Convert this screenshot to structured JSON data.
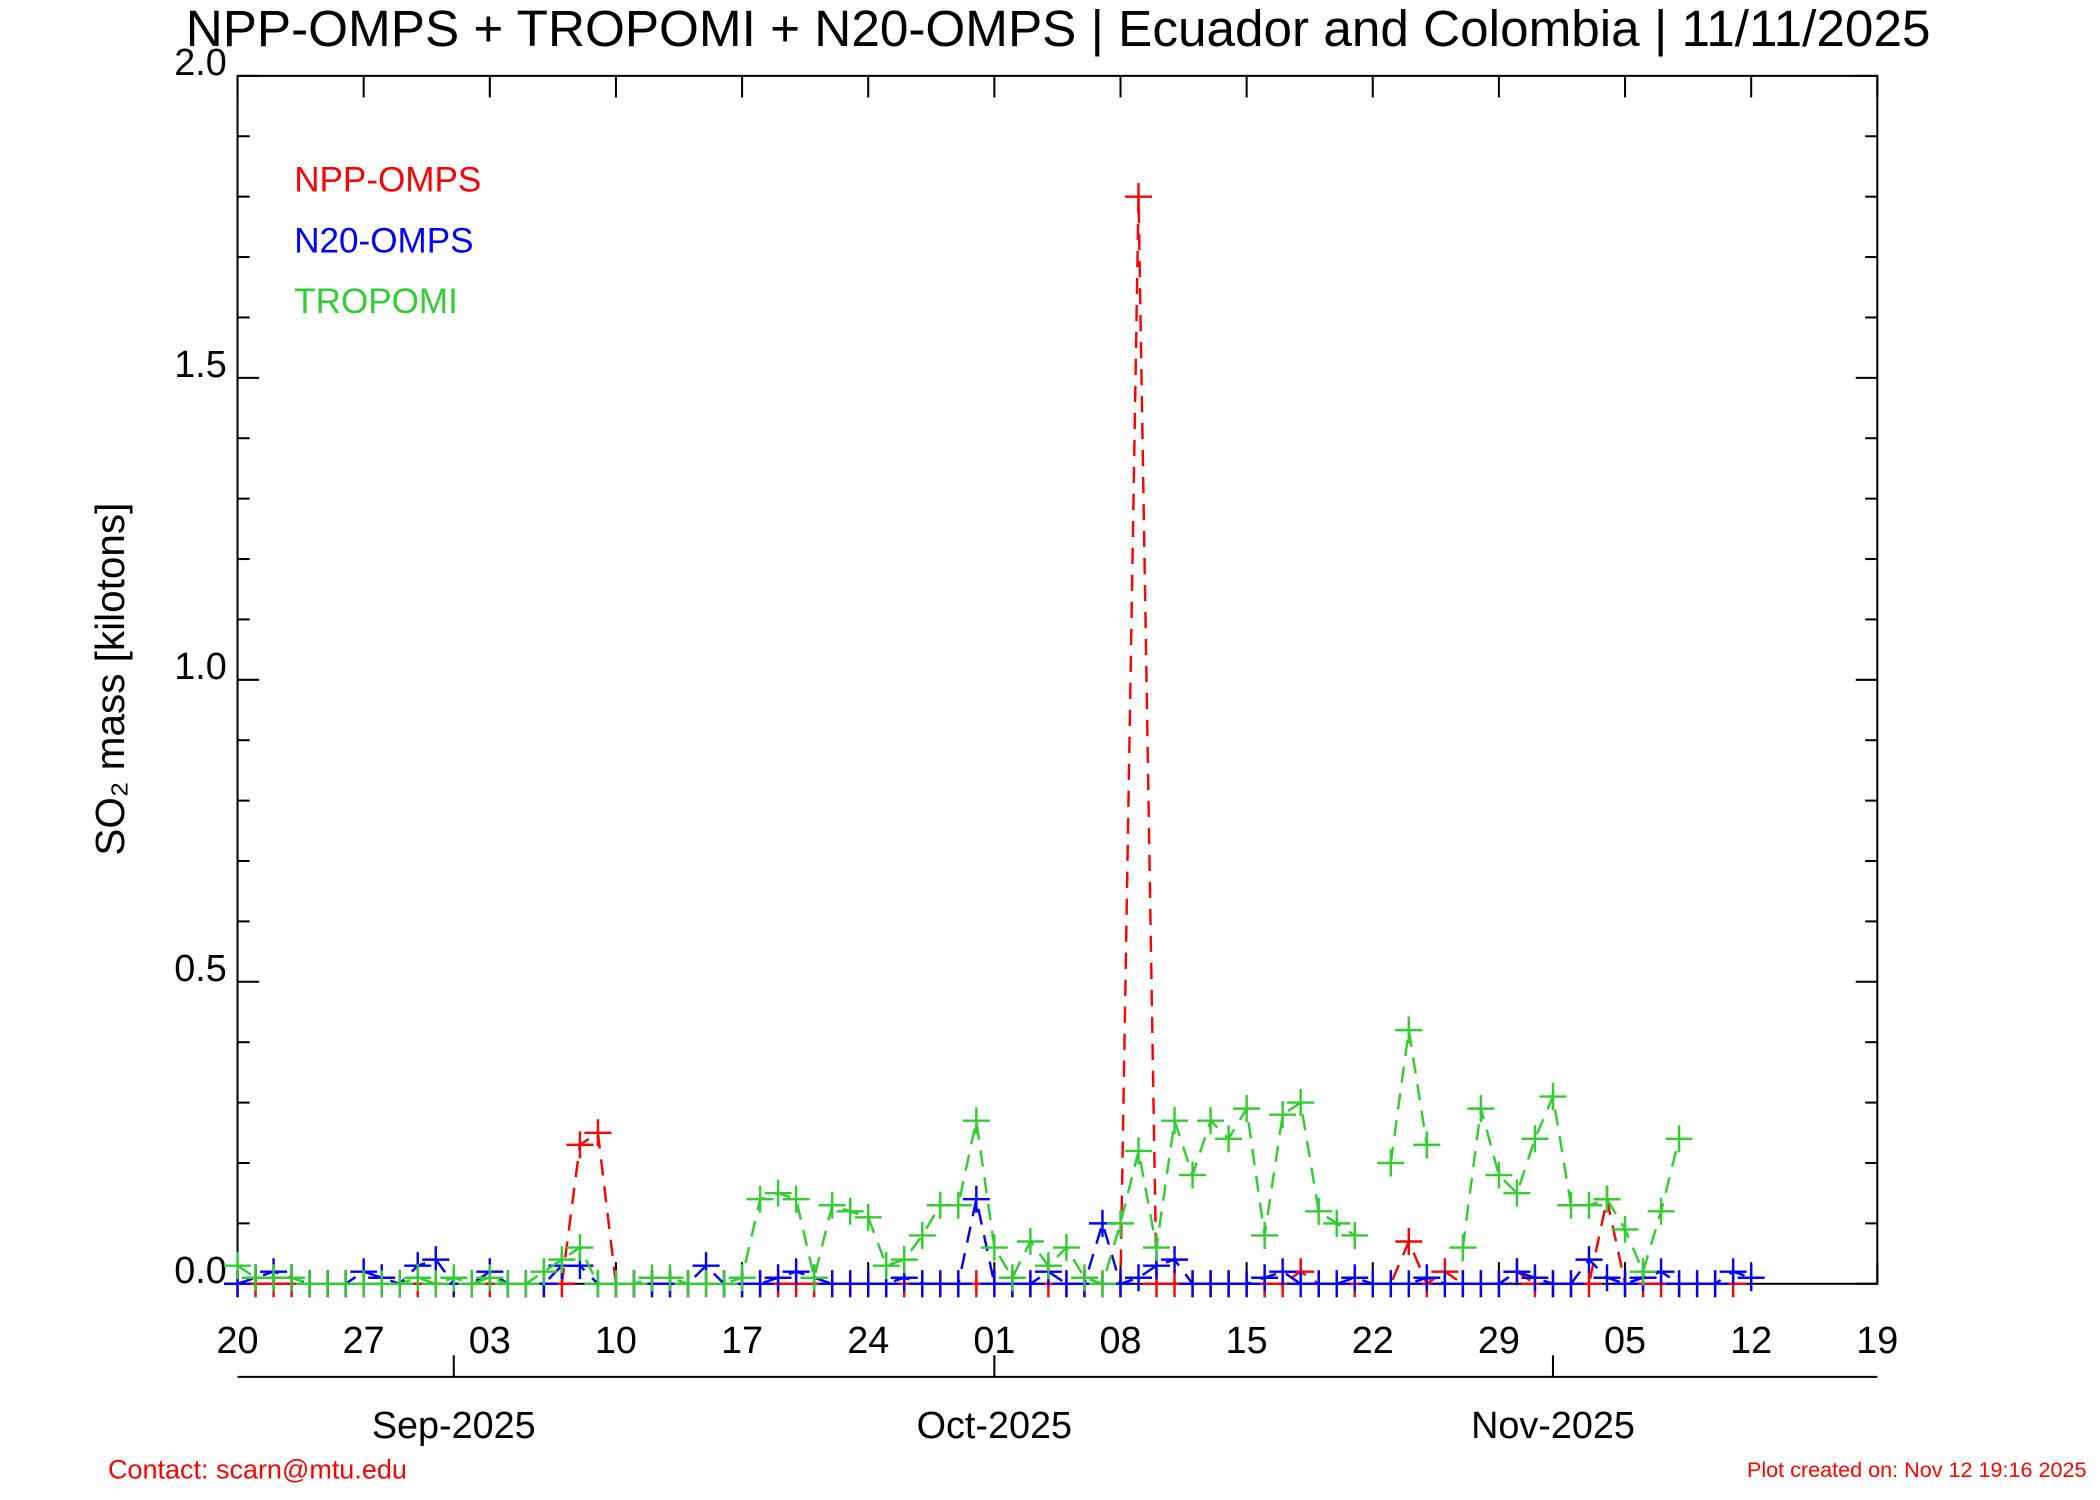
{
  "chart_data": {
    "type": "line",
    "title": "NPP-OMPS + TROPOMI + N20-OMPS | Ecuador and Colombia | 11/11/2025",
    "y_label": "SO₂ mass [kilotons]",
    "ylim": [
      0,
      2
    ],
    "yticks": [
      {
        "value": 0,
        "label": "0.0"
      },
      0.5,
      {
        "value": 1,
        "label": "1.0"
      },
      1.5,
      {
        "value": 2,
        "label": "2.0"
      }
    ],
    "yminorticks": [
      0.1,
      0.2,
      0.3,
      0.4,
      0.6,
      0.7,
      0.8,
      0.9,
      1.1,
      1.2,
      1.3,
      1.4,
      1.6,
      1.7,
      1.8,
      1.9
    ],
    "xlim": [
      "2025-08-20",
      "2025-11-19"
    ],
    "xticks": [
      {
        "value": "2025-08-20",
        "label": "20"
      },
      {
        "value": "2025-08-27",
        "label": "27"
      },
      {
        "value": "2025-09-03",
        "label": "03"
      },
      {
        "value": "2025-09-10",
        "label": "10"
      },
      {
        "value": "2025-09-17",
        "label": "17"
      },
      {
        "value": "2025-09-24",
        "label": "24"
      },
      {
        "value": "2025-10-01",
        "label": "01"
      },
      {
        "value": "2025-10-08",
        "label": "08"
      },
      {
        "value": "2025-10-15",
        "label": "15"
      },
      {
        "value": "2025-10-22",
        "label": "22"
      },
      {
        "value": "2025-10-29",
        "label": "29"
      },
      {
        "value": "2025-11-05",
        "label": "05"
      },
      {
        "value": "2025-11-12",
        "label": "12"
      },
      {
        "value": "2025-11-19",
        "label": "19"
      }
    ],
    "month_ticks": [
      {
        "value": "2025-09-01",
        "label": "Sep-2025"
      },
      {
        "value": "2025-10-01",
        "label": "Oct-2025"
      },
      {
        "value": "2025-11-01",
        "label": "Nov-2025"
      }
    ],
    "x": [
      "2025-08-20",
      "2025-08-21",
      "2025-08-22",
      "2025-08-23",
      "2025-08-24",
      "2025-08-25",
      "2025-08-26",
      "2025-08-27",
      "2025-08-28",
      "2025-08-29",
      "2025-08-30",
      "2025-08-31",
      "2025-09-01",
      "2025-09-02",
      "2025-09-03",
      "2025-09-04",
      "2025-09-05",
      "2025-09-06",
      "2025-09-07",
      "2025-09-08",
      "2025-09-09",
      "2025-09-10",
      "2025-09-11",
      "2025-09-12",
      "2025-09-13",
      "2025-09-14",
      "2025-09-15",
      "2025-09-16",
      "2025-09-17",
      "2025-09-18",
      "2025-09-19",
      "2025-09-20",
      "2025-09-21",
      "2025-09-22",
      "2025-09-23",
      "2025-09-24",
      "2025-09-25",
      "2025-09-26",
      "2025-09-27",
      "2025-09-28",
      "2025-09-29",
      "2025-09-30",
      "2025-10-01",
      "2025-10-02",
      "2025-10-03",
      "2025-10-04",
      "2025-10-05",
      "2025-10-06",
      "2025-10-07",
      "2025-10-08",
      "2025-10-09",
      "2025-10-10",
      "2025-10-11",
      "2025-10-12",
      "2025-10-13",
      "2025-10-14",
      "2025-10-15",
      "2025-10-16",
      "2025-10-17",
      "2025-10-18",
      "2025-10-19",
      "2025-10-20",
      "2025-10-21",
      "2025-10-22",
      "2025-10-23",
      "2025-10-24",
      "2025-10-25",
      "2025-10-26",
      "2025-10-27",
      "2025-10-28",
      "2025-10-29",
      "2025-10-30",
      "2025-10-31",
      "2025-11-01",
      "2025-11-02",
      "2025-11-03",
      "2025-11-04",
      "2025-11-05",
      "2025-11-06",
      "2025-11-07",
      "2025-11-08",
      "2025-11-09",
      "2025-11-10",
      "2025-11-11",
      "2025-11-12",
      "2025-11-13"
    ],
    "series": [
      {
        "name": "NPP-OMPS",
        "color": "#ff0000",
        "values": [
          0,
          0,
          0,
          0,
          0,
          0,
          0,
          0,
          0,
          0,
          0,
          0,
          0,
          0,
          0,
          0,
          0,
          0,
          0,
          0.23,
          0.25,
          0,
          0,
          0,
          0,
          0,
          0,
          0,
          0,
          0,
          0,
          0,
          0,
          0,
          0,
          0,
          0,
          0,
          0,
          0,
          0,
          0,
          0,
          0,
          0,
          0,
          0,
          0,
          0,
          0,
          1.8,
          0,
          0,
          0,
          0,
          0,
          0,
          0,
          0,
          0.02,
          0,
          0,
          0,
          0,
          0,
          0.07,
          0,
          0.02,
          0,
          0,
          0,
          0.02,
          0,
          0,
          0,
          0,
          0.14,
          0,
          0,
          0,
          0,
          0,
          0,
          0,
          null,
          null
        ]
      },
      {
        "name": "N20-OMPS",
        "color": "#0000ff",
        "values": [
          0,
          0.01,
          0.02,
          0.01,
          0,
          0,
          0,
          0.02,
          0.01,
          0,
          0.03,
          0.04,
          0,
          0,
          0.02,
          0,
          0,
          0,
          0.03,
          0.03,
          0,
          0,
          0,
          0,
          0,
          0,
          0.03,
          0,
          0,
          0,
          0.01,
          0.02,
          0.01,
          0,
          0,
          0,
          0,
          0.01,
          0,
          0,
          0,
          0.14,
          0,
          0,
          0,
          0.02,
          0,
          0,
          0.1,
          0,
          0.01,
          0.03,
          0.04,
          0,
          0,
          0,
          0,
          0.01,
          0.02,
          0,
          0,
          0,
          0.01,
          0,
          0,
          0,
          0.01,
          0,
          0,
          0,
          0,
          0.02,
          0.01,
          0,
          0,
          0.04,
          0.01,
          0,
          0.01,
          0.02,
          0,
          0,
          0,
          0.02,
          0.01,
          null
        ]
      },
      {
        "name": "TROPOMI",
        "color": "#33cc33",
        "values": [
          0.03,
          0.01,
          0.01,
          0.01,
          0,
          0,
          0,
          0,
          0,
          0,
          0.01,
          0,
          0.01,
          0,
          0.01,
          0,
          0,
          0.02,
          0.04,
          0.06,
          0,
          0,
          0,
          0.01,
          0.01,
          0,
          0,
          0,
          0.01,
          0.14,
          0.15,
          0.14,
          0.01,
          0.13,
          0.12,
          0.11,
          0.03,
          0.04,
          0.08,
          0.13,
          0.13,
          0.27,
          0.06,
          0.01,
          0.07,
          0.03,
          0.06,
          0.01,
          0,
          0.1,
          0.22,
          0.06,
          0.27,
          0.18,
          0.27,
          0.24,
          0.29,
          0.08,
          0.28,
          0.3,
          0.12,
          0.1,
          0.08,
          null,
          0.2,
          0.42,
          0.23,
          null,
          0.06,
          0.29,
          0.18,
          0.15,
          0.24,
          0.31,
          0.13,
          0.13,
          0.14,
          0.09,
          0.02,
          0.12,
          0.24,
          null,
          null,
          null,
          null,
          null
        ]
      }
    ],
    "legend": "upper left",
    "contact": "Contact: scarn@mtu.edu",
    "created": "Plot created on: Nov 12 19:16 2025"
  }
}
